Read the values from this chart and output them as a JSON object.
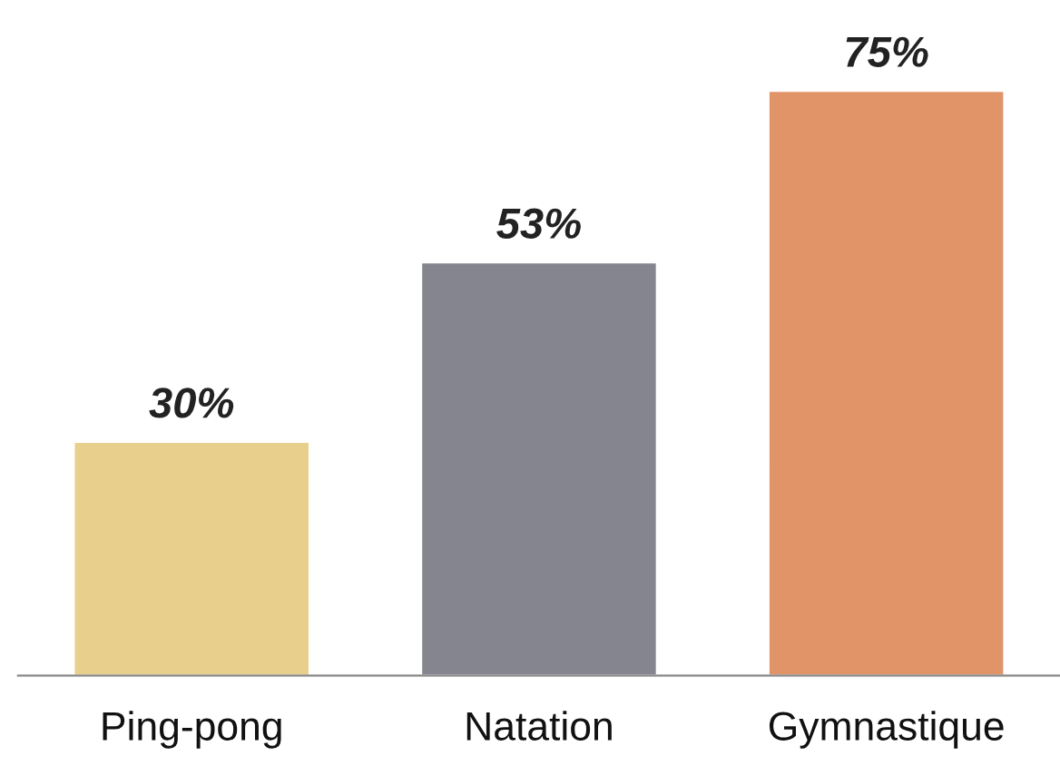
{
  "chart_data": {
    "type": "bar",
    "categories": [
      "Ping-pong",
      "Natation",
      "Gymnastique"
    ],
    "values": [
      30,
      53,
      75
    ],
    "colors": [
      "#e8d08c",
      "#85858f",
      "#e09468"
    ],
    "value_labels": [
      "30%",
      "53%",
      "75%"
    ],
    "grid": false,
    "legend": false
  }
}
